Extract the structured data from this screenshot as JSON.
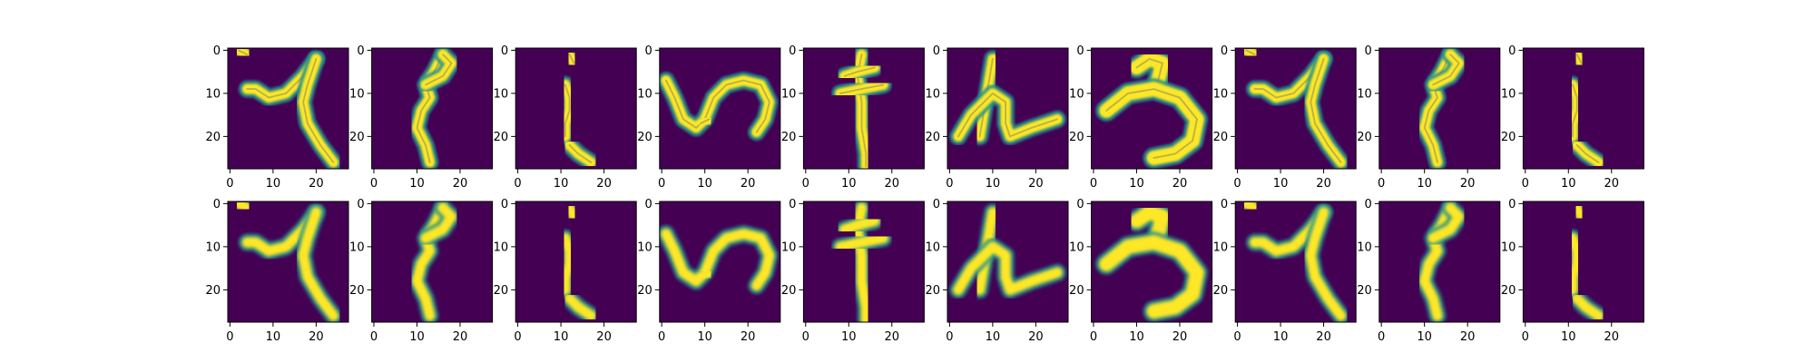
{
  "chart_data": {
    "type": "image_grid",
    "rows": 2,
    "cols": 10,
    "image_size": [
      28,
      28
    ],
    "colormap": "viridis",
    "xlim": [
      -0.5,
      27.5
    ],
    "ylim": [
      27.5,
      -0.5
    ],
    "x_ticks": [
      0,
      10,
      20
    ],
    "y_ticks": [
      0,
      10,
      20
    ],
    "x_tick_labels": [
      "0",
      "10",
      "20"
    ],
    "y_tick_labels": [
      "0",
      "10",
      "20"
    ],
    "glyphs": [
      "2,0 4,1 | 4,9 6,9 9,11 13,10 17,6 20,2 | 20,2 18,8 17,12 18,17 21,22 24,26",
      "16,1 14,5 12,8 13,11 11,14 10,18 12,22 13,26 | 12,8 16,6 18,3 16,1",
      "12,1 13,3 | 11,8 12,11 12,14 11,17 11,20 | 12,22 14,24 17,26",
      "1,7 3,11 5,16 8,18 10,16 12,11 15,8 19,7 23,8 25,12 24,16 22,19 | 9,17 11,16",
      "13,1 12,6 13,12 13,18 14,24 14,27 | 9,6 12,5 16,4 | 8,10 13,9 18,8",
      "10,2 9,8 8,14 7,20 | 2,20 5,15 10,10 13,12 13,17 14,20 19,18 25,16",
      "10,4 13,2 16,3 15,7 | 3,14 8,10 14,9 20,11 24,16 23,21 19,24 14,25"
    ]
  }
}
